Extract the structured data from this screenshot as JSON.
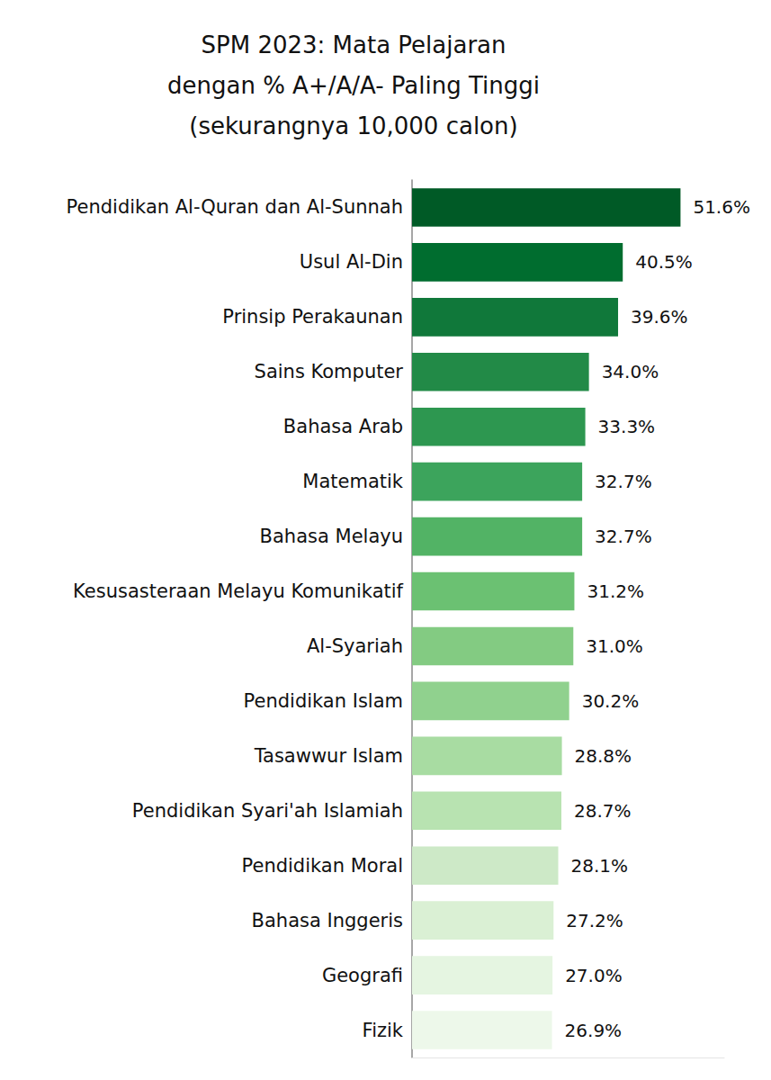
{
  "chart_data": {
    "type": "bar",
    "title": "SPM 2023: Mata Pelajaran\ndengan % A+/A/A- Paling Tinggi\n(sekurangnya 10,000 calon)",
    "orientation": "horizontal",
    "categories": [
      "Pendidikan Al-Quran dan Al-Sunnah",
      "Usul Al-Din",
      "Prinsip Perakaunan",
      "Sains Komputer",
      "Bahasa Arab",
      "Matematik",
      "Bahasa Melayu",
      "Kesusasteraan Melayu Komunikatif",
      "Al-Syariah",
      "Pendidikan Islam",
      "Tasawwur Islam",
      "Pendidikan Syari'ah Islamiah",
      "Pendidikan Moral",
      "Bahasa Inggeris",
      "Geografi",
      "Fizik"
    ],
    "values": [
      51.6,
      40.5,
      39.6,
      34.0,
      33.3,
      32.7,
      32.7,
      31.2,
      31.0,
      30.2,
      28.8,
      28.7,
      28.1,
      27.2,
      27.0,
      26.9
    ],
    "value_labels": [
      "51.6%",
      "40.5%",
      "39.6%",
      "34.0%",
      "33.3%",
      "32.7%",
      "32.7%",
      "31.2%",
      "31.0%",
      "30.2%",
      "28.8%",
      "28.7%",
      "28.1%",
      "27.2%",
      "27.0%",
      "26.9%"
    ],
    "colors": [
      "#005a26",
      "#006d2f",
      "#10783a",
      "#228a47",
      "#2d9750",
      "#3ca45c",
      "#52b365",
      "#6bc172",
      "#83cb82",
      "#90d18e",
      "#a8dca2",
      "#b8e3b1",
      "#cde9c7",
      "#daf0d4",
      "#e5f5e1",
      "#edf8ea"
    ],
    "xlim": [
      0,
      60
    ],
    "data_labels": true,
    "tick_labels": "y",
    "grid": false
  }
}
